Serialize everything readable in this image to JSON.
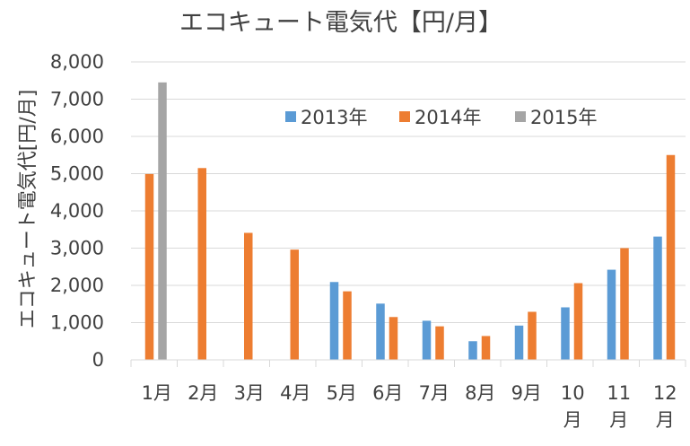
{
  "chart_data": {
    "type": "bar",
    "title": "エコキュート電気代【円/月】",
    "ylabel": "エコキュート電気代[円/月]",
    "xlabel": "",
    "ylim": [
      0,
      8000
    ],
    "yticks": [
      "0",
      "1,000",
      "2,000",
      "3,000",
      "4,000",
      "5,000",
      "6,000",
      "7,000",
      "8,000"
    ],
    "categories": [
      "1月",
      "2月",
      "3月",
      "4月",
      "5月",
      "6月",
      "7月",
      "8月",
      "9月",
      "10月",
      "11月",
      "12月"
    ],
    "legend_position": "top-right",
    "grid": true,
    "series": [
      {
        "name": "2013年",
        "color": "#5B9BD5",
        "values": [
          null,
          null,
          null,
          null,
          2090,
          1510,
          1050,
          500,
          920,
          1410,
          2420,
          3310
        ]
      },
      {
        "name": "2014年",
        "color": "#ED7D31",
        "values": [
          4990,
          5150,
          3410,
          2960,
          1840,
          1150,
          900,
          640,
          1290,
          2060,
          3000,
          5500
        ]
      },
      {
        "name": "2015年",
        "color": "#A5A5A5",
        "values": [
          7450,
          null,
          null,
          null,
          null,
          null,
          null,
          null,
          null,
          null,
          null,
          null
        ]
      }
    ]
  }
}
